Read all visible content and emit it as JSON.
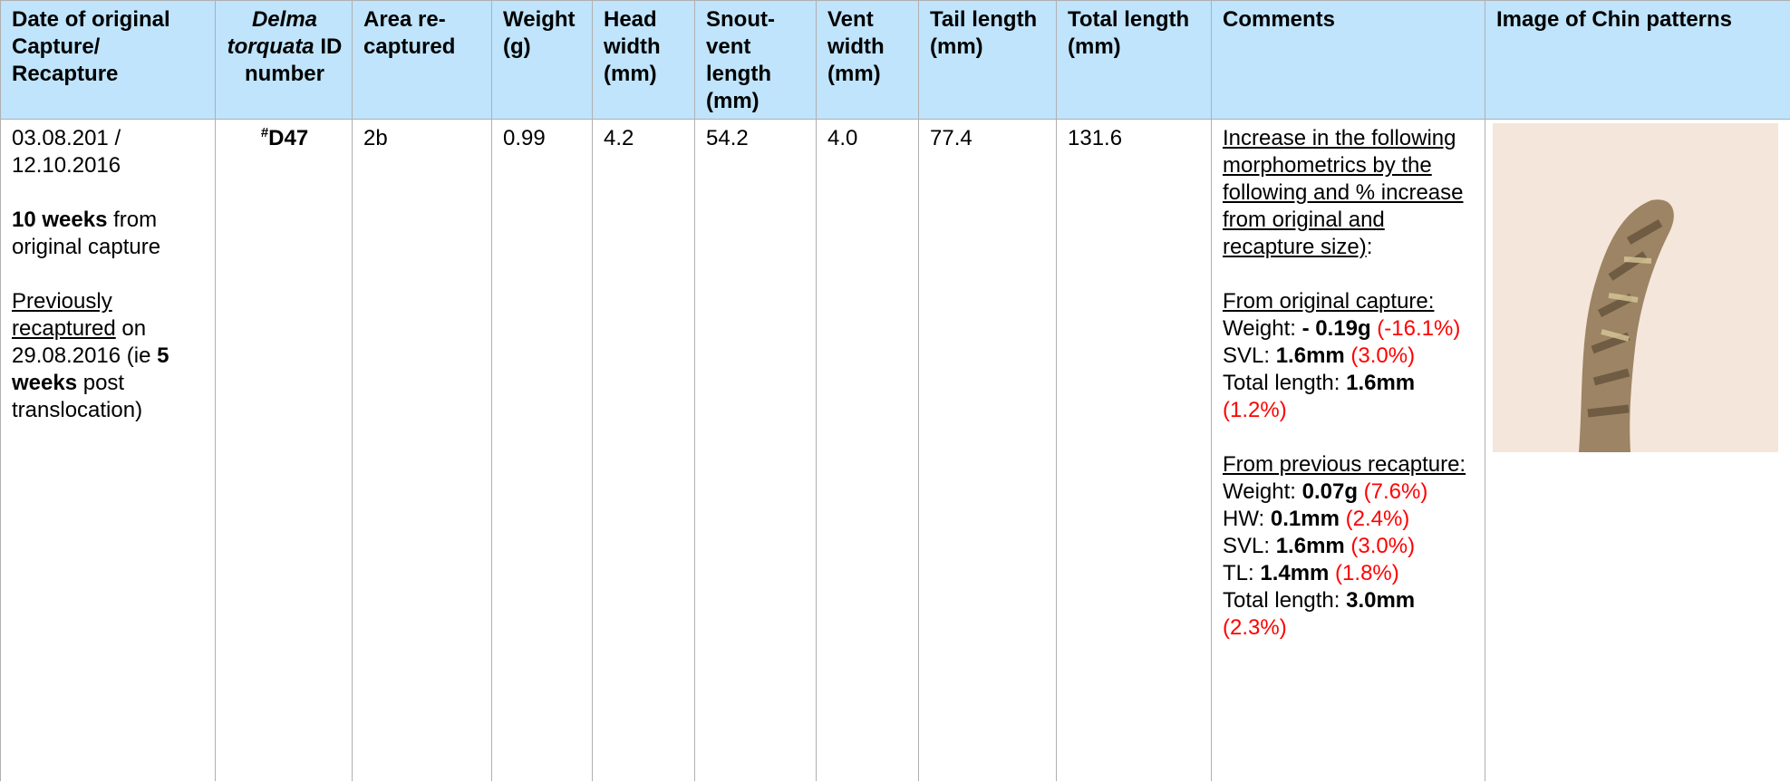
{
  "table": {
    "headers": [
      [
        {
          "text": "Date of original Capture/ Recapture"
        }
      ],
      [
        {
          "text": "Delma torquata",
          "style": "i"
        },
        {
          "text": " ID number"
        }
      ],
      [
        {
          "text": "Area re-captured"
        }
      ],
      [
        {
          "text": "Weight (g)"
        }
      ],
      [
        {
          "text": "Head width (mm)"
        }
      ],
      [
        {
          "text": "Snout-vent length (mm)"
        }
      ],
      [
        {
          "text": "Vent width (mm)"
        }
      ],
      [
        {
          "text": "Tail length (mm)"
        }
      ],
      [
        {
          "text": "Total length (mm)"
        }
      ],
      [
        {
          "text": "Comments"
        }
      ],
      [
        {
          "text": "Image of Chin patterns"
        }
      ]
    ],
    "rows": [
      [
        [
          [
            [
              {
                "text": "03.08.201 / 12.10.2016"
              }
            ]
          ],
          [
            [
              {
                "text": "10 weeks",
                "style": "b"
              },
              {
                "text": " from original capture"
              }
            ]
          ],
          [
            [
              {
                "text": "Previously recaptured",
                "style": "u"
              },
              {
                "text": " on 29.08.2016 (ie "
              },
              {
                "text": "5 weeks",
                "style": "b"
              },
              {
                "text": " post translocation)"
              }
            ]
          ]
        ],
        [
          [
            [
              {
                "text": "#",
                "style": "b sup"
              },
              {
                "text": "D47",
                "style": "b"
              }
            ]
          ]
        ],
        "2b",
        "0.99",
        "4.2",
        "54.2",
        "4.0",
        "77.4",
        "131.6",
        [
          [
            [
              {
                "text": "Increase in the following morphometrics by the following and % increase from original and recapture size)",
                "style": "u"
              },
              {
                "text": ":"
              }
            ]
          ],
          [
            [
              {
                "text": "From original capture:",
                "style": "u"
              }
            ],
            [
              {
                "text": "Weight: "
              },
              {
                "text": "- 0.19g",
                "style": "b"
              },
              {
                "text": " (-16.1%)",
                "style": "red"
              }
            ],
            [
              {
                "text": "SVL: "
              },
              {
                "text": "1.6mm",
                "style": "b"
              },
              {
                "text": " (3.0%)",
                "style": "red"
              }
            ],
            [
              {
                "text": "Total length: "
              },
              {
                "text": "1.6mm",
                "style": "b"
              },
              {
                "text": " (1.2%)",
                "style": "red"
              }
            ]
          ],
          [
            [
              {
                "text": "From previous recapture:",
                "style": "u"
              }
            ],
            [
              {
                "text": "Weight: "
              },
              {
                "text": "0.07g",
                "style": "b"
              },
              {
                "text": " (7.6%)",
                "style": "red"
              }
            ],
            [
              {
                "text": "HW: "
              },
              {
                "text": "0.1mm",
                "style": "b"
              },
              {
                "text": " (2.4%)",
                "style": "red"
              }
            ],
            [
              {
                "text": "SVL: "
              },
              {
                "text": "1.6mm",
                "style": "b"
              },
              {
                "text": " (3.0%)",
                "style": "red"
              }
            ],
            [
              {
                "text": "TL: "
              },
              {
                "text": "1.4mm",
                "style": "b"
              },
              {
                "text": " (1.8%)",
                "style": "red"
              }
            ],
            [
              {
                "text": "Total length: "
              },
              {
                "text": "3.0mm",
                "style": "b"
              },
              {
                "text": " (2.3%)",
                "style": "red"
              }
            ]
          ]
        ]
      ]
    ]
  }
}
